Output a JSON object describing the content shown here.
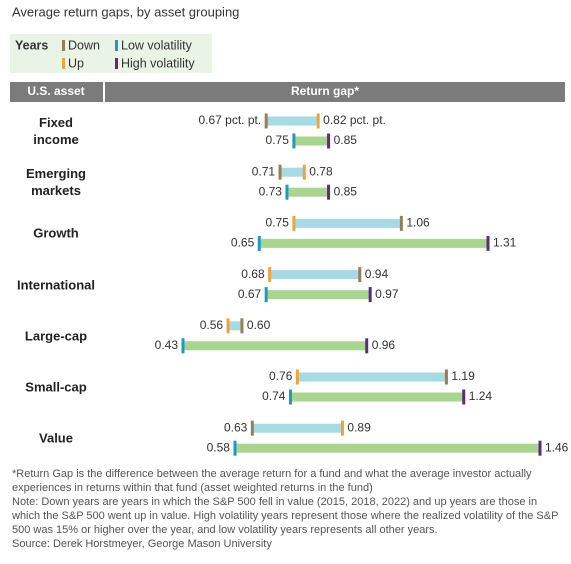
{
  "chart_data": {
    "type": "dumbbell",
    "title": "Average return gaps, by asset grouping",
    "legend_title": "Years",
    "header": {
      "left": "U.S. asset",
      "right": "Return gap*"
    },
    "categories": [
      "Fixed income",
      "Emerging markets",
      "Growth",
      "International",
      "Large-cap",
      "Small-cap",
      "Value"
    ],
    "series": [
      {
        "name": "Down",
        "color": "#9a7d52",
        "values": [
          0.67,
          0.71,
          1.06,
          0.94,
          0.6,
          1.19,
          0.63
        ],
        "value_labels": [
          "0.67 pct. pt.",
          "0.71",
          "1.06",
          "0.94",
          "0.60",
          "1.19",
          "0.63"
        ]
      },
      {
        "name": "Up",
        "color": "#f0a33a",
        "values": [
          0.82,
          0.78,
          0.75,
          0.68,
          0.56,
          0.76,
          0.89
        ],
        "value_labels": [
          "0.82 pct. pt.",
          "0.78",
          "0.75",
          "0.68",
          "0.56",
          "0.76",
          "0.89"
        ]
      },
      {
        "name": "Low volatility",
        "color": "#1b9ac6",
        "values": [
          0.75,
          0.73,
          0.65,
          0.67,
          0.43,
          0.74,
          0.58
        ],
        "value_labels": [
          "0.75",
          "0.73",
          "0.65",
          "0.67",
          "0.43",
          "0.74",
          "0.58"
        ]
      },
      {
        "name": "High volatility",
        "color": "#5a2b7e",
        "values": [
          0.85,
          0.85,
          1.31,
          0.97,
          0.96,
          1.24,
          1.46
        ],
        "value_labels": [
          "0.85",
          "0.85",
          "1.31",
          "0.97",
          "0.96",
          "1.24",
          "1.46"
        ]
      }
    ],
    "range_colors": [
      "#a4dbe4",
      "#a9d68f"
    ],
    "footnotes": [
      "*Return Gap is the difference between the average return for a fund and what the average investor actually experiences in returns within that fund (asset weighted returns in the fund)",
      "Note: Down years are years in which the S&P 500 fell in value (2015, 2018, 2022) and up years are those in which the S&P 500 went up in value.  High volatility years represent those where the realized volatility of the S&P 500 was 15% or higher over the year, and low volatility years represents all other years.",
      "Source: Derek Horstmeyer, George Mason University"
    ]
  }
}
